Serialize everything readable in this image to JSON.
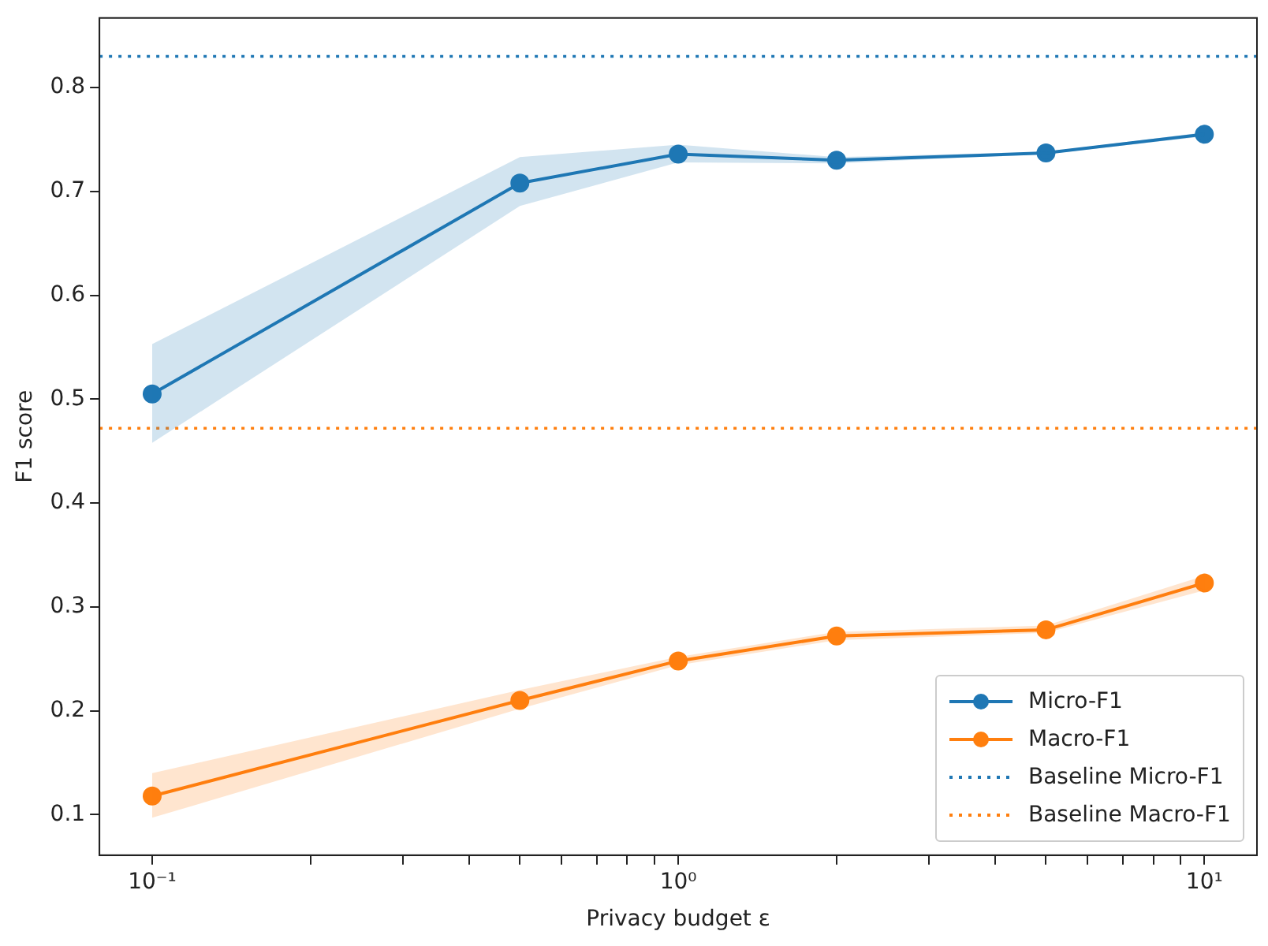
{
  "chart_data": {
    "type": "line",
    "xlabel": "Privacy budget ε",
    "ylabel": "F1 score",
    "log": "x",
    "x": [
      0.1,
      0.5,
      1,
      2,
      5,
      10
    ],
    "xlim": [
      0.0794,
      12.59
    ],
    "xticks": [
      {
        "value": 0.1,
        "label": "10⁻¹"
      },
      {
        "value": 0.2,
        "label": null
      },
      {
        "value": 0.3,
        "label": null
      },
      {
        "value": 0.4,
        "label": null
      },
      {
        "value": 0.5,
        "label": null
      },
      {
        "value": 0.6,
        "label": null
      },
      {
        "value": 0.7,
        "label": null
      },
      {
        "value": 0.8,
        "label": null
      },
      {
        "value": 0.9,
        "label": null
      },
      {
        "value": 1,
        "label": "10⁰"
      },
      {
        "value": 2,
        "label": null
      },
      {
        "value": 3,
        "label": null
      },
      {
        "value": 4,
        "label": null
      },
      {
        "value": 5,
        "label": null
      },
      {
        "value": 6,
        "label": null
      },
      {
        "value": 7,
        "label": null
      },
      {
        "value": 8,
        "label": null
      },
      {
        "value": 9,
        "label": null
      },
      {
        "value": 10,
        "label": "10¹"
      }
    ],
    "ylim": [
      0.061,
      0.867
    ],
    "yticks": [
      0.1,
      0.2,
      0.3,
      0.4,
      0.5,
      0.6,
      0.7,
      0.8
    ],
    "grid": false,
    "legend": "bottom right",
    "marker": "circle",
    "line_style": "solid",
    "series": [
      {
        "name": "Micro-F1",
        "color": "#1f77b4",
        "values": [
          0.505,
          0.708,
          0.736,
          0.73,
          0.737,
          0.755
        ],
        "lower": [
          0.458,
          0.686,
          0.728,
          0.727,
          0.736,
          0.753
        ],
        "upper": [
          0.553,
          0.733,
          0.745,
          0.733,
          0.738,
          0.757
        ]
      },
      {
        "name": "Macro-F1",
        "color": "#ff7f0e",
        "values": [
          0.118,
          0.21,
          0.248,
          0.272,
          0.278,
          0.323
        ],
        "lower": [
          0.097,
          0.202,
          0.244,
          0.268,
          0.275,
          0.316
        ],
        "upper": [
          0.14,
          0.22,
          0.252,
          0.276,
          0.282,
          0.33
        ]
      }
    ],
    "ref_lines": [
      {
        "axis": "y",
        "value": 0.83,
        "label": "Baseline Micro-F1",
        "color": "#1f77b4",
        "line_style": "dotted"
      },
      {
        "axis": "y",
        "value": 0.472,
        "label": "Baseline Macro-F1",
        "color": "#ff7f0e",
        "line_style": "dotted"
      }
    ]
  }
}
